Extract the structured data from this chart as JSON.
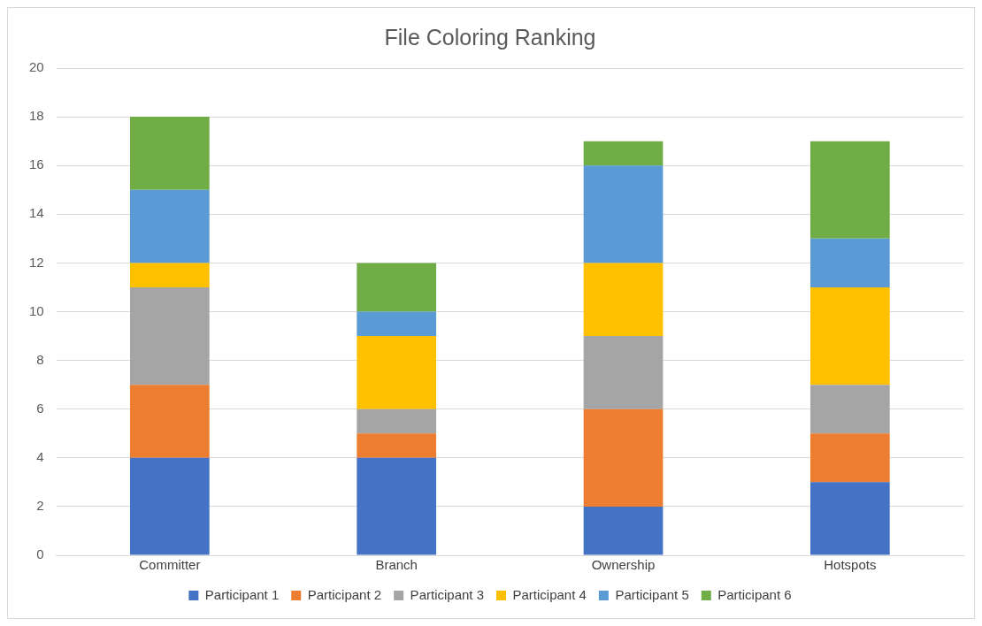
{
  "chart_data": {
    "type": "bar",
    "title": "File Coloring Ranking",
    "categories": [
      "Committer",
      "Branch",
      "Ownership",
      "Hotspots"
    ],
    "stacked": true,
    "ylim": [
      0,
      20
    ],
    "yticks": [
      0,
      2,
      4,
      6,
      8,
      10,
      12,
      14,
      16,
      18,
      20
    ],
    "grid": "y",
    "legend": "bottom",
    "series": [
      {
        "name": "Participant 1",
        "color": "#4472c4",
        "values": [
          4,
          4,
          2,
          3
        ]
      },
      {
        "name": "Participant 2",
        "color": "#ed7d31",
        "values": [
          3,
          1,
          4,
          2
        ]
      },
      {
        "name": "Participant 3",
        "color": "#a5a5a5",
        "values": [
          4,
          1,
          3,
          2
        ]
      },
      {
        "name": "Participant 4",
        "color": "#ffc000",
        "values": [
          1,
          3,
          3,
          4
        ]
      },
      {
        "name": "Participant 5",
        "color": "#5b9bd5",
        "values": [
          3,
          1,
          4,
          2
        ]
      },
      {
        "name": "Participant 6",
        "color": "#70ad47",
        "values": [
          3,
          2,
          1,
          4
        ]
      }
    ]
  }
}
